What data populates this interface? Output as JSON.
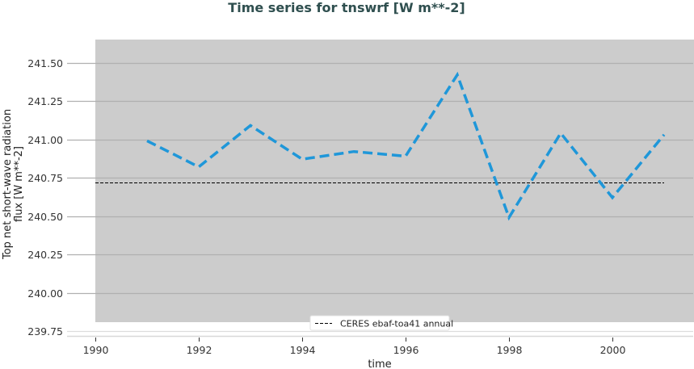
{
  "chart_data": {
    "type": "line",
    "title": "Time series for tnswrf [W m**-2]",
    "xlabel": "time",
    "ylabel_lines": [
      "Top net short-wave radiation",
      "flux [W m**-2]"
    ],
    "xlim": [
      1990,
      2001
    ],
    "ylim": [
      239.75,
      241.65
    ],
    "x_ticks": [
      1990,
      1992,
      1994,
      1996,
      1998,
      2000
    ],
    "x_tick_labels": [
      "1990",
      "1992",
      "1994",
      "1996",
      "1998",
      "2000"
    ],
    "y_ticks": [
      239.75,
      240.0,
      240.25,
      240.5,
      240.75,
      241.0,
      241.25,
      241.5
    ],
    "y_tick_labels": [
      "239.75",
      "240.00",
      "240.25",
      "240.50",
      "240.75",
      "241.00",
      "241.25",
      "241.50"
    ],
    "grid": true,
    "plot_background": "#cccccc",
    "series": [
      {
        "name": "tnswrf",
        "style": "dashed",
        "color": "#1f97d9",
        "x": [
          1991,
          1992,
          1993,
          1994,
          1995,
          1996,
          1997,
          1998,
          1999,
          2000,
          2001
        ],
        "values": [
          240.99,
          240.82,
          241.09,
          240.87,
          240.92,
          240.89,
          241.42,
          240.49,
          241.04,
          240.62,
          241.03
        ]
      }
    ],
    "reference_lines": [
      {
        "name": "CERES ebaf-toa41 annual",
        "value": 240.72,
        "style": "dashed",
        "color": "#000000"
      }
    ],
    "legend": {
      "position": "bottom-center",
      "entries": [
        {
          "label": "CERES ebaf-toa41 annual",
          "style": "dashed",
          "color": "#000000"
        }
      ]
    }
  }
}
